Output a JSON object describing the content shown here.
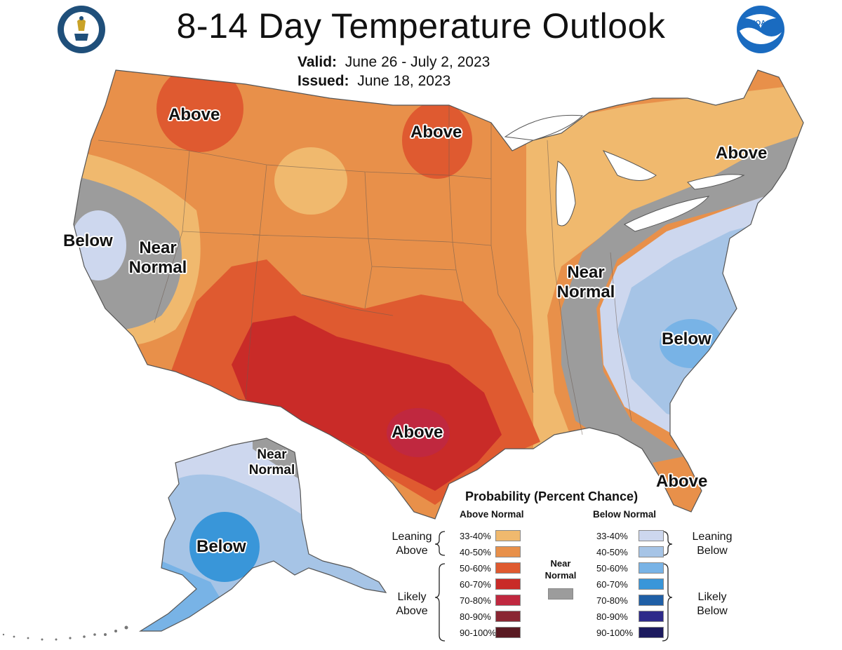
{
  "title": "8-14 Day Temperature Outlook",
  "valid": {
    "label": "Valid:",
    "value": "June 26 - July 2, 2023"
  },
  "issued": {
    "label": "Issued:",
    "value": "June 18, 2023"
  },
  "logos": {
    "left": "department-of-commerce-seal-icon",
    "right": "noaa-logo-icon"
  },
  "region_labels": {
    "nw_above": "Above",
    "nd_above": "Above",
    "ne_above": "Above",
    "ca_below": "Below",
    "ca_near": "Near Normal",
    "ms_near": "Near Normal",
    "se_below": "Below",
    "tx_above": "Above",
    "fl_above": "Above",
    "ak_near": "Near Normal",
    "ak_below": "Below"
  },
  "legend": {
    "title": "Probability (Percent Chance)",
    "above_header": "Above Normal",
    "below_header": "Below Normal",
    "near_label": "Near Normal",
    "near_color": "#9c9c9c",
    "leaning_above": "Leaning Above",
    "likely_above": "Likely Above",
    "leaning_below": "Leaning Below",
    "likely_below": "Likely Below",
    "above": [
      {
        "range": "33-40%",
        "color": "#f0b96e"
      },
      {
        "range": "40-50%",
        "color": "#e8904a"
      },
      {
        "range": "50-60%",
        "color": "#df5a30"
      },
      {
        "range": "60-70%",
        "color": "#c92b28"
      },
      {
        "range": "70-80%",
        "color": "#c0283f"
      },
      {
        "range": "80-90%",
        "color": "#8a2632"
      },
      {
        "range": "90-100%",
        "color": "#5a1a22"
      }
    ],
    "below": [
      {
        "range": "33-40%",
        "color": "#cdd7ee"
      },
      {
        "range": "40-50%",
        "color": "#a6c4e6"
      },
      {
        "range": "50-60%",
        "color": "#78b3e6"
      },
      {
        "range": "60-70%",
        "color": "#3996d9"
      },
      {
        "range": "70-80%",
        "color": "#1f5fa6"
      },
      {
        "range": "80-90%",
        "color": "#2e2a8a"
      },
      {
        "range": "90-100%",
        "color": "#1c1a5e"
      }
    ]
  }
}
